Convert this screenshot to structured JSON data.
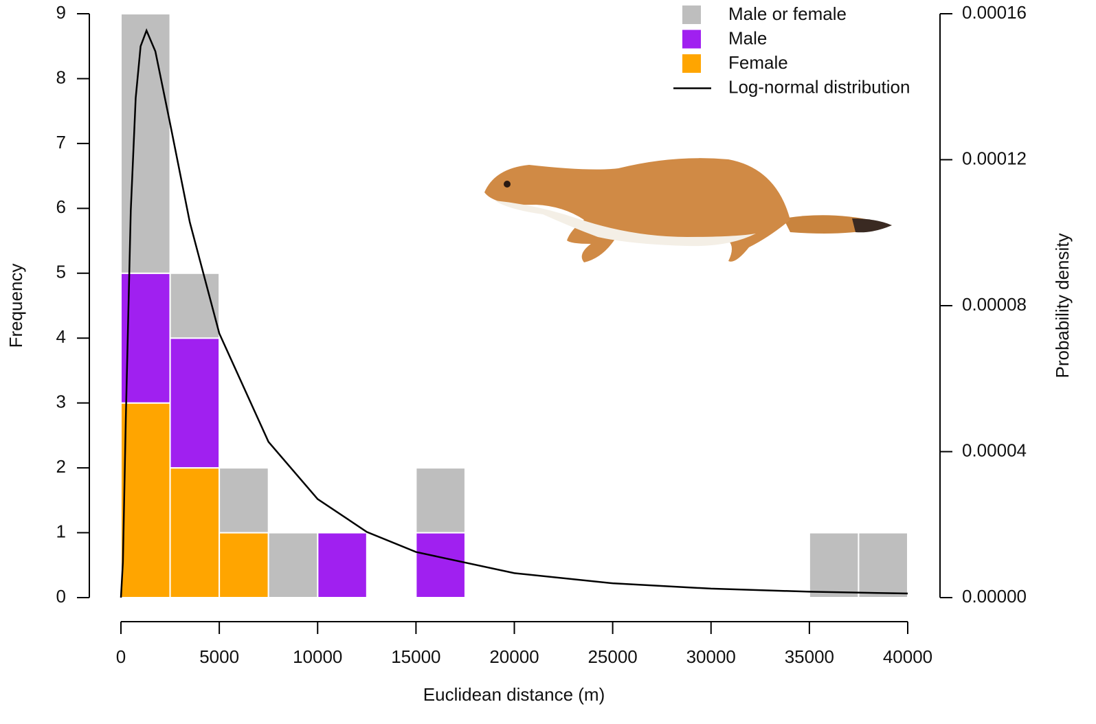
{
  "chart_data": {
    "type": "histogram",
    "xlabel": "Euclidean distance (m)",
    "ylabel": "Frequency",
    "y2label": "Probability density",
    "bins": [
      0,
      2500,
      5000,
      7500,
      10000,
      12500,
      15000,
      17500,
      20000,
      22500,
      25000,
      27500,
      30000,
      32500,
      35000,
      37500,
      40000
    ],
    "series": [
      {
        "name": "Female",
        "color": "#ffa500",
        "values": [
          3,
          2,
          1,
          0,
          0,
          0,
          0,
          0,
          0,
          0,
          0,
          0,
          0,
          0,
          0,
          0
        ]
      },
      {
        "name": "Male",
        "color": "#a020f0",
        "values": [
          2,
          2,
          0,
          0,
          1,
          0,
          1,
          0,
          0,
          0,
          0,
          0,
          0,
          0,
          0,
          0
        ]
      },
      {
        "name": "Male or female",
        "color": "#bebebe",
        "values": [
          4,
          1,
          1,
          1,
          0,
          0,
          1,
          0,
          0,
          0,
          0,
          0,
          0,
          0,
          1,
          1
        ]
      }
    ],
    "legend_order": [
      "Male or female",
      "Male",
      "Female",
      "Log-normal distribution"
    ],
    "line": {
      "name": "Log-normal distribution",
      "color": "#000000",
      "axis": "y2",
      "x": [
        0,
        100,
        250,
        500,
        750,
        1000,
        1300,
        1750,
        2500,
        3500,
        5000,
        7500,
        10000,
        12500,
        15000,
        20000,
        25000,
        30000,
        35000,
        40000
      ],
      "values": [
        0,
        9.7e-06,
        4.95e-05,
        0.000106,
        0.0001369,
        0.0001511,
        0.0001554,
        0.0001497,
        0.0001299,
        0.0001029,
        7.24e-05,
        4.27e-05,
        2.7e-05,
        1.8e-05,
        1.25e-05,
        6.7e-06,
        3.92e-06,
        2.46e-06,
        1.62e-06,
        1.12e-06
      ]
    },
    "xlim": [
      0,
      40000
    ],
    "xticks": [
      0,
      5000,
      10000,
      15000,
      20000,
      25000,
      30000,
      35000,
      40000
    ],
    "ylim": [
      0,
      9
    ],
    "yticks": [
      0,
      1,
      2,
      3,
      4,
      5,
      6,
      7,
      8,
      9
    ],
    "y2lim": [
      0,
      0.00016
    ],
    "y2ticks": [
      {
        "value": 0,
        "label": "0.00000"
      },
      4e-05,
      8e-05,
      0.00012,
      0.00016
    ],
    "legend": "top-right"
  }
}
